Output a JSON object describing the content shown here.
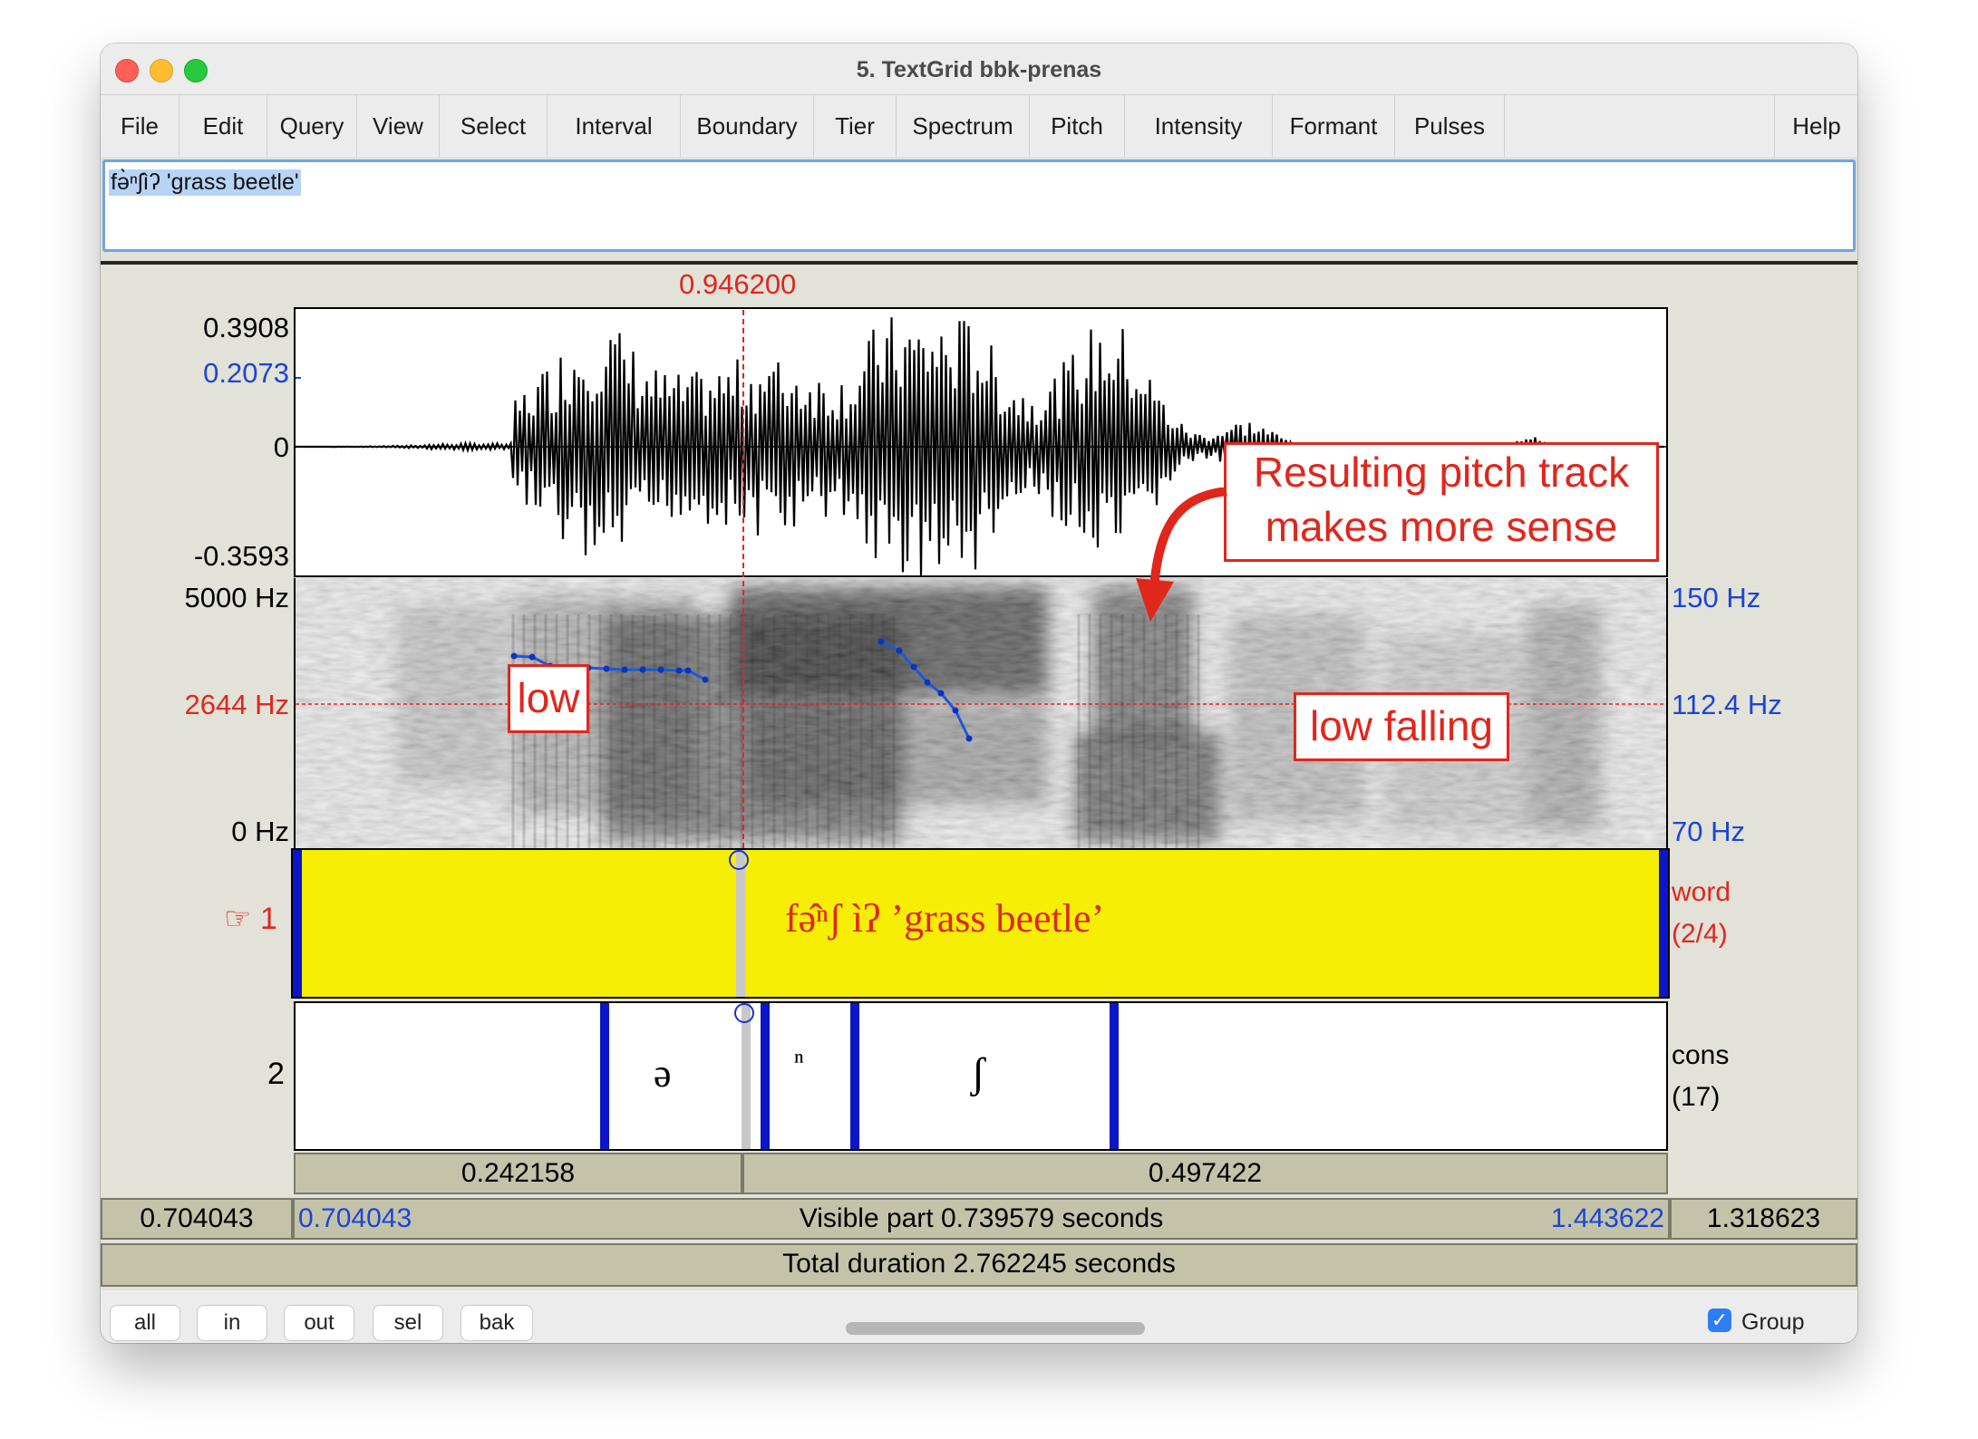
{
  "window": {
    "title": "5. TextGrid bbk-prenas"
  },
  "menu": [
    "File",
    "Edit",
    "Query",
    "View",
    "Select",
    "Interval",
    "Boundary",
    "Tier",
    "Spectrum",
    "Pitch",
    "Intensity",
    "Formant",
    "Pulses"
  ],
  "help": "Help",
  "text_field": "fə̀ⁿʃìʔ 'grass beetle'",
  "cursor_time": "0.946200",
  "waveform": {
    "max": "0.3908",
    "cursor_value": "0.2073",
    "zero": "0",
    "min": "-0.3593"
  },
  "spectrogram": {
    "freq_max": "5000 Hz",
    "freq_cursor": "2644 Hz",
    "freq_min": "0 Hz",
    "pitch_max": "150 Hz",
    "pitch_cursor": "112.4 Hz",
    "pitch_min": "70 Hz"
  },
  "annotations": {
    "box1": "Resulting pitch track",
    "box1b": "makes more sense",
    "low": "low",
    "low_falling": "low falling"
  },
  "tiers": [
    {
      "number": "1",
      "marker": "☞",
      "name": "word",
      "count": "(2/4)",
      "interval_text": "fə̂ⁿʃ ìʔ ’grass beetle’"
    },
    {
      "number": "2",
      "name": "cons",
      "count": "(17)",
      "intervals": [
        "ə",
        "ⁿ",
        "ʃ"
      ]
    }
  ],
  "durations": {
    "left": "0.242158",
    "right": "0.497422"
  },
  "visible": {
    "start_outer": "0.704043",
    "start": "0.704043",
    "label": "Visible part 0.739579 seconds",
    "end": "1.443622",
    "end_outer": "1.318623"
  },
  "total": "Total duration 2.762245 seconds",
  "buttons": [
    "all",
    "in",
    "out",
    "sel",
    "bak"
  ],
  "group": {
    "label": "Group",
    "checked": true
  },
  "colors": {
    "cursor": "#e1261c",
    "pitch_track": "#1a5ad6",
    "tier_selected": "#f7ee05",
    "boundary": "#0a16c8"
  }
}
